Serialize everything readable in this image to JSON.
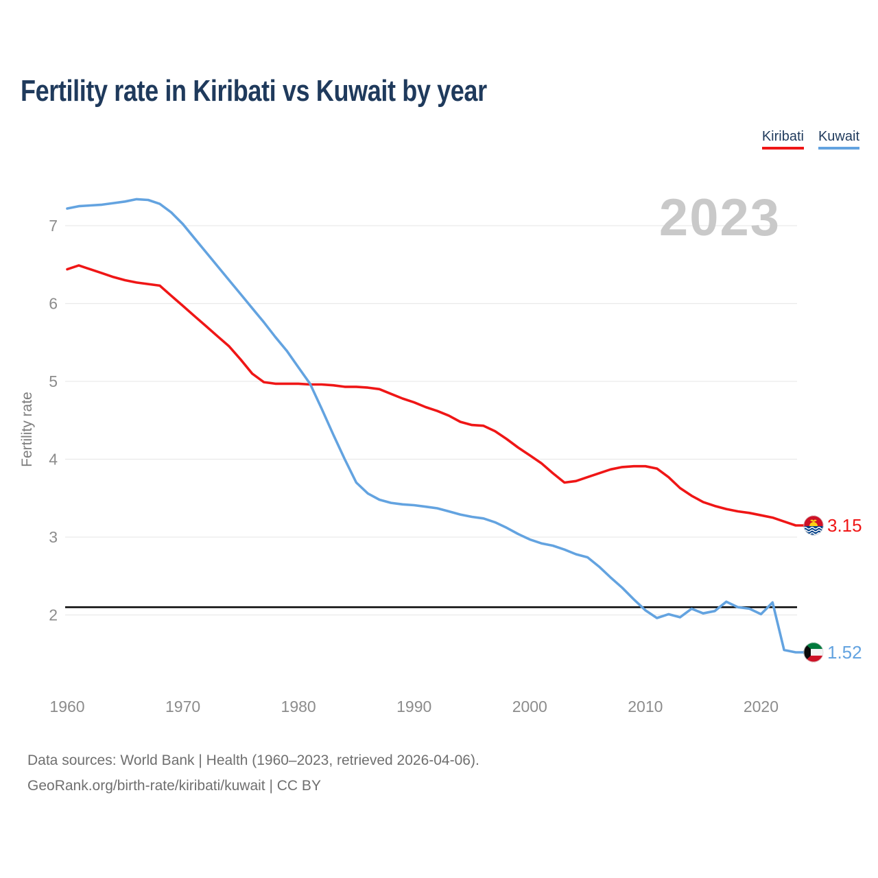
{
  "title": "Fertility rate in Kiribati vs Kuwait by year",
  "watermark": "2023",
  "legend": {
    "items": [
      {
        "label": "Kiribati",
        "color": "#ef1616"
      },
      {
        "label": "Kuwait",
        "color": "#63a3e0"
      }
    ]
  },
  "footer": {
    "line1": "Data sources: World Bank | Health (1960–2023, retrieved 2026-04-06).",
    "line2": "GeoRank.org/birth-rate/kiribati/kuwait | CC BY"
  },
  "chart_data": {
    "type": "line",
    "title": "Fertility rate in Kiribati vs Kuwait by year",
    "xlabel": "",
    "ylabel": "Fertility rate",
    "x_start": 1960,
    "x_end": 2023,
    "x_ticks": [
      1960,
      1970,
      1980,
      1990,
      2000,
      2010,
      2020
    ],
    "y_ticks": [
      2,
      3,
      4,
      5,
      6,
      7
    ],
    "ylim": [
      1.45,
      7.45
    ],
    "grid": "horizontal",
    "reference_line": {
      "value": 2.1,
      "color": "#0a0a0a"
    },
    "series": [
      {
        "name": "Kiribati",
        "color": "#ef1616",
        "flag": "kiribati",
        "end_label": "3.15",
        "values": [
          6.44,
          6.49,
          6.44,
          6.39,
          6.34,
          6.3,
          6.27,
          6.25,
          6.23,
          6.1,
          5.97,
          5.84,
          5.71,
          5.58,
          5.45,
          5.28,
          5.1,
          4.99,
          4.97,
          4.97,
          4.97,
          4.96,
          4.96,
          4.95,
          4.93,
          4.93,
          4.92,
          4.9,
          4.84,
          4.78,
          4.73,
          4.67,
          4.62,
          4.56,
          4.48,
          4.44,
          4.43,
          4.36,
          4.26,
          4.15,
          4.05,
          3.95,
          3.82,
          3.7,
          3.72,
          3.77,
          3.82,
          3.87,
          3.9,
          3.91,
          3.91,
          3.88,
          3.77,
          3.63,
          3.53,
          3.45,
          3.4,
          3.36,
          3.33,
          3.31,
          3.28,
          3.25,
          3.2,
          3.15
        ]
      },
      {
        "name": "Kuwait",
        "color": "#63a3e0",
        "flag": "kuwait",
        "end_label": "1.52",
        "values": [
          7.22,
          7.25,
          7.26,
          7.27,
          7.29,
          7.31,
          7.34,
          7.33,
          7.28,
          7.17,
          7.02,
          6.84,
          6.66,
          6.48,
          6.3,
          6.12,
          5.94,
          5.76,
          5.57,
          5.39,
          5.18,
          4.97,
          4.65,
          4.32,
          4.0,
          3.7,
          3.56,
          3.48,
          3.44,
          3.42,
          3.41,
          3.39,
          3.37,
          3.33,
          3.29,
          3.26,
          3.24,
          3.19,
          3.12,
          3.04,
          2.97,
          2.92,
          2.89,
          2.84,
          2.78,
          2.74,
          2.62,
          2.48,
          2.35,
          2.2,
          2.06,
          1.96,
          2.01,
          1.97,
          2.08,
          2.02,
          2.05,
          2.17,
          2.1,
          2.08,
          2.01,
          2.16,
          1.55,
          1.52
        ]
      }
    ]
  }
}
